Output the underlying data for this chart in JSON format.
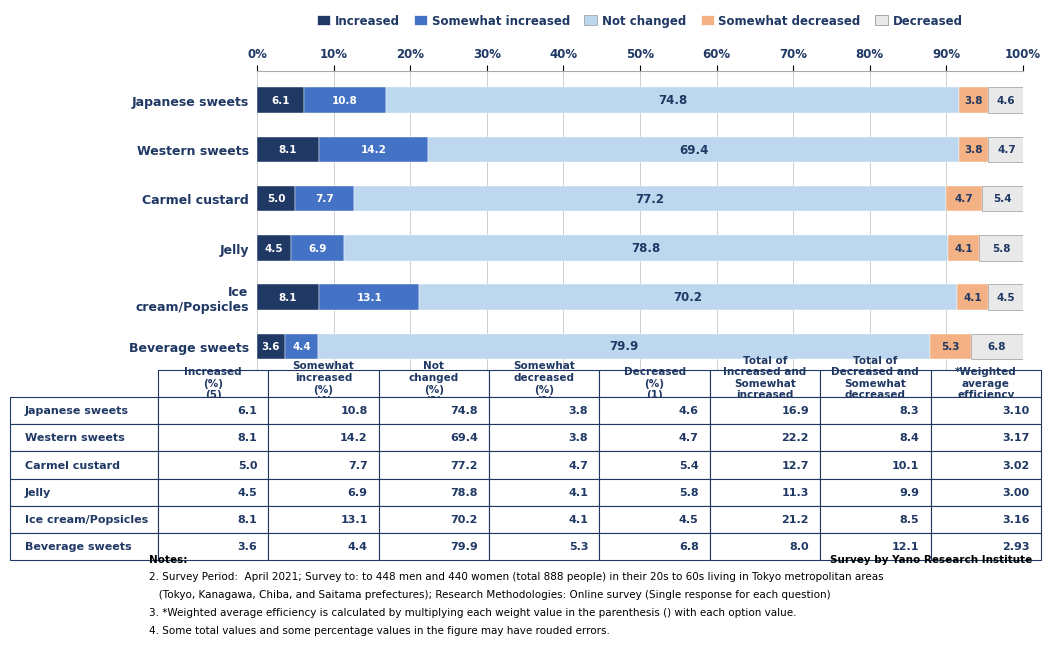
{
  "categories": [
    "Japanese sweets",
    "Western sweets",
    "Carmel custard",
    "Jelly",
    "Ice\ncream/Popsicles",
    "Beverage sweets"
  ],
  "increased": [
    6.1,
    8.1,
    5.0,
    4.5,
    8.1,
    3.6
  ],
  "somewhat_increased": [
    10.8,
    14.2,
    7.7,
    6.9,
    13.1,
    4.4
  ],
  "not_changed": [
    74.8,
    69.4,
    77.2,
    78.8,
    70.2,
    79.9
  ],
  "somewhat_decreased": [
    3.8,
    3.8,
    4.7,
    4.1,
    4.1,
    5.3
  ],
  "decreased": [
    4.6,
    4.7,
    5.4,
    5.8,
    4.5,
    6.8
  ],
  "colors": {
    "increased": "#1F3864",
    "somewhat_increased": "#4472C4",
    "not_changed": "#BDD7EE",
    "somewhat_decreased": "#F4B183",
    "decreased": "#E9E9E9"
  },
  "legend_labels": [
    "Increased",
    "Somewhat increased",
    "Not changed",
    "Somewhat decreased",
    "Decreased"
  ],
  "table_rows": [
    [
      "Japanese sweets",
      6.1,
      10.8,
      74.8,
      3.8,
      4.6,
      16.9,
      8.3,
      3.1
    ],
    [
      "Western sweets",
      8.1,
      14.2,
      69.4,
      3.8,
      4.7,
      22.2,
      8.4,
      3.17
    ],
    [
      "Carmel custard",
      5.0,
      7.7,
      77.2,
      4.7,
      5.4,
      12.7,
      10.1,
      3.02
    ],
    [
      "Jelly",
      4.5,
      6.9,
      78.8,
      4.1,
      5.8,
      11.3,
      9.9,
      3.0
    ],
    [
      "Ice cream/Popsicles",
      8.1,
      13.1,
      70.2,
      4.1,
      4.5,
      21.2,
      8.5,
      3.16
    ],
    [
      "Beverage sweets",
      3.6,
      4.4,
      79.9,
      5.3,
      6.8,
      8.0,
      12.1,
      2.93
    ]
  ],
  "col_headers": [
    "Increased\n(%)\n(5)",
    "Somewhat\nincreased\n(%)\n(4)",
    "Not\nchanged\n(%)\n(3)",
    "Somewhat\ndecreased\n(%)\n(2)",
    "Decreased\n(%)\n(1)",
    "Total of\nIncreased and\nSomewhat\nincreased\n(%)",
    "Total of\nDecreased and\nSomewhat\ndecreased\n(%)",
    "*Weighted\naverage\nefficiency"
  ],
  "notes_line1": "Notes:",
  "notes_line2": "2. Survey Period:  April 2021; Survey to: to 448 men and 440 women (total 888 people) in their 20s to 60s living in Tokyo metropolitan areas",
  "notes_line3": "   (Tokyo, Kanagawa, Chiba, and Saitama prefectures); Research Methodologies: Online survey (Single response for each question)",
  "notes_line4": "3. *Weighted average efficiency is calculated by multiplying each weight value in the parenthesis () with each option value.",
  "notes_line5": "4. Some total values and some percentage values in the figure may have rouded errors.",
  "survey_credit": "Survey by Yano Research Institute",
  "bg_color": "#FFFFFF",
  "dark_blue": "#1F3864"
}
